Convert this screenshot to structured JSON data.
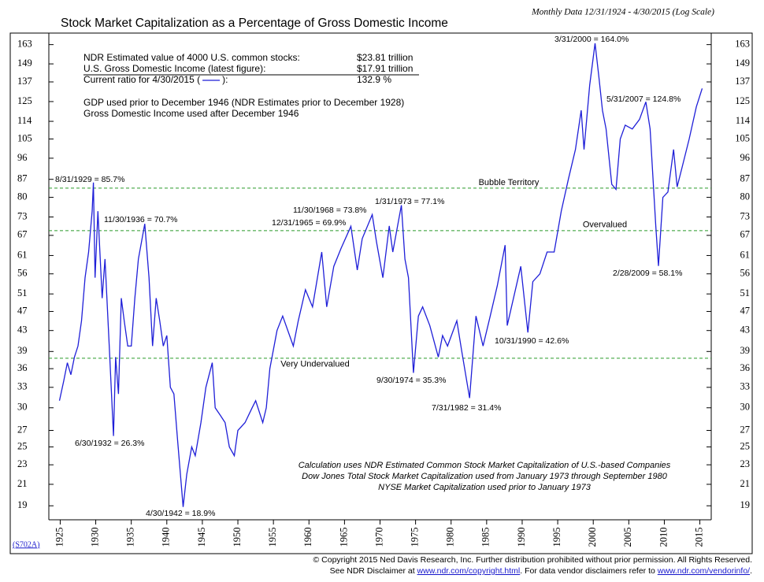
{
  "chart_data": {
    "type": "line",
    "title": "Stock Market Capitalization as a Percentage of Gross Domestic Income",
    "subtitle": "Monthly Data 12/31/1924 - 4/30/2015 (Log Scale)",
    "code": "(S702A)",
    "log_scale": true,
    "xlim": [
      1923.4,
      2016.6
    ],
    "xticks": [
      1925,
      1930,
      1935,
      1940,
      1945,
      1950,
      1955,
      1960,
      1965,
      1970,
      1975,
      1980,
      1985,
      1990,
      1995,
      2000,
      2005,
      2010,
      2015
    ],
    "ylim": [
      17.8,
      172
    ],
    "yticks": [
      19,
      21,
      23,
      25,
      27,
      30,
      33,
      36,
      39,
      43,
      47,
      51,
      56,
      61,
      67,
      73,
      80,
      87,
      96,
      105,
      114,
      125,
      137,
      149,
      163
    ],
    "series": [
      {
        "name": "Stock Market Capitalization as a Percentage of GDI",
        "color": "#1f1fd8",
        "x": [
          1924.9,
          1925.5,
          1926.0,
          1926.5,
          1927.0,
          1927.5,
          1928.0,
          1928.5,
          1929.0,
          1929.5,
          1929.67,
          1929.9,
          1930.3,
          1930.9,
          1931.3,
          1931.9,
          1932.5,
          1932.8,
          1933.2,
          1933.6,
          1934.0,
          1934.5,
          1935.0,
          1935.5,
          1936.0,
          1936.9,
          1937.5,
          1938.0,
          1938.5,
          1939.0,
          1939.5,
          1940.0,
          1940.5,
          1941.0,
          1941.5,
          1942.3,
          1942.8,
          1943.5,
          1944.0,
          1944.8,
          1945.5,
          1946.4,
          1946.8,
          1947.5,
          1948.2,
          1948.8,
          1949.5,
          1950.0,
          1951.0,
          1952.0,
          1952.5,
          1953.5,
          1954.0,
          1954.5,
          1955.5,
          1956.3,
          1957.8,
          1958.5,
          1959.5,
          1960.5,
          1961.8,
          1962.5,
          1963.5,
          1964.5,
          1965.9,
          1966.8,
          1967.5,
          1968.9,
          1969.5,
          1970.4,
          1971.3,
          1971.8,
          1973.0,
          1973.5,
          1974.0,
          1974.7,
          1975.4,
          1976.0,
          1977.0,
          1978.2,
          1978.8,
          1979.5,
          1980.8,
          1981.5,
          1982.6,
          1983.5,
          1984.5,
          1985.5,
          1986.5,
          1987.6,
          1987.9,
          1988.5,
          1989.8,
          1990.8,
          1991.5,
          1992.5,
          1993.5,
          1994.5,
          1995.5,
          1996.5,
          1997.5,
          1998.3,
          1998.7,
          1999.5,
          2000.25,
          2000.8,
          2001.3,
          2001.8,
          2002.6,
          2003.2,
          2003.8,
          2004.5,
          2005.5,
          2006.5,
          2007.4,
          2008.0,
          2008.8,
          2009.17,
          2009.8,
          2010.5,
          2011.3,
          2011.8,
          2012.5,
          2013.5,
          2014.5,
          2015.33
        ],
        "values": [
          31,
          34,
          37,
          35,
          38,
          40,
          45,
          55,
          62,
          75,
          85.7,
          55,
          75,
          50,
          60,
          40,
          26.3,
          38,
          32,
          50,
          45,
          40,
          40,
          50,
          60,
          70.7,
          55,
          40,
          50,
          45,
          40,
          42,
          33,
          32,
          26,
          18.9,
          22,
          25,
          24,
          28,
          33,
          37,
          30,
          29,
          28,
          25,
          24,
          27,
          28,
          30,
          31,
          28,
          30,
          36,
          43,
          46,
          40,
          45,
          52,
          48,
          62,
          48,
          58,
          63,
          69.9,
          57,
          66,
          73.8,
          65,
          55,
          70,
          62,
          77.1,
          60,
          55,
          35.3,
          46,
          48,
          44,
          38,
          42,
          40,
          45,
          39,
          31.4,
          46,
          40,
          46,
          53,
          64,
          44,
          48,
          58,
          42.6,
          54,
          56,
          62,
          62,
          75,
          87,
          100,
          120,
          100,
          135,
          164,
          140,
          120,
          110,
          85,
          83,
          105,
          112,
          110,
          115,
          124.8,
          110,
          70,
          58.1,
          80,
          82,
          100,
          84,
          92,
          105,
          122,
          132.9
        ]
      }
    ],
    "reference_lines": [
      {
        "label": "Bubble Territory",
        "value": 83.5,
        "color": "#2a9a2a"
      },
      {
        "label": "Overvalued",
        "value": 68.5,
        "color": "#2a9a2a"
      },
      {
        "label": "Very Undervalued",
        "value": 37.8,
        "color": "#2a9a2a"
      }
    ],
    "annotations": [
      "3/31/2000 = 164.0%",
      "8/31/1929 = 85.7%",
      "11/30/1936 = 70.7%",
      "6/30/1932 = 26.3%",
      "4/30/1942 = 18.9%",
      "11/30/1968 = 73.8%",
      "12/31/1965 = 69.9%",
      "1/31/1973 = 77.1%",
      "9/30/1974 = 35.3%",
      "7/31/1982 = 31.4%",
      "10/31/1990 = 42.6%",
      "5/31/2007 = 124.8%",
      "2/28/2009 = 58.1%"
    ],
    "info": [
      {
        "label": "NDR Estimated value of 4000 U.S. common stocks:",
        "value": "$23.81 trillion"
      },
      {
        "label": "U.S. Gross Domestic Income (latest figure):",
        "value": "$17.91 trillion"
      }
    ],
    "current": {
      "label_start": "Current ratio for 4/30/2015 (",
      "label_end": "):",
      "value": "132.9 %"
    },
    "notes": [
      "GDP used prior to December 1946 (NDR Estimates prior to December 1928)",
      "Gross Domestic Income used after December 1946"
    ],
    "footnotes": [
      "Calculation uses NDR Estimated Common Stock Market Capitalization of U.S.-based Companies",
      "Dow Jones Total Stock Market Capitalization used from January 1973 through September 1980",
      "NYSE Market Capitalization used prior to January 1973"
    ]
  },
  "footer": {
    "copyright": "© Copyright 2015 Ned Davis Research, Inc.  Further distribution prohibited without prior permission.  All Rights Reserved.",
    "line2_start": "See NDR Disclaimer at ",
    "link1": "www.ndr.com/copyright.html",
    "line2_mid": ".  For data vendor disclaimers refer to ",
    "link2": "www.ndr.com/vendorinfo/",
    "line2_end": "."
  }
}
